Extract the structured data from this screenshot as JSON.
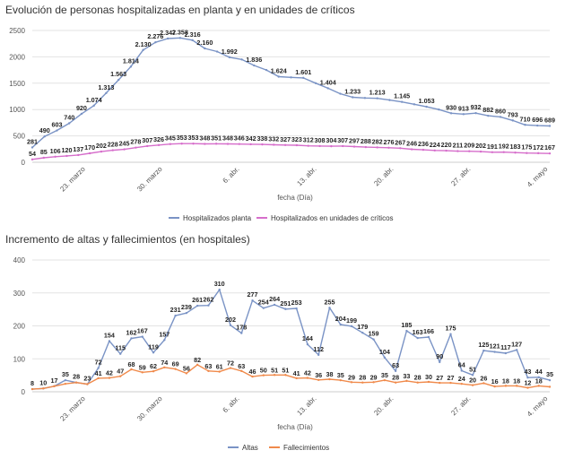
{
  "chart_data": [
    {
      "type": "line",
      "title": "Evolución de personas hospitalizadas en planta y en unidades de críticos",
      "xlabel": "fecha (Día)",
      "ylabel": "",
      "ylim": [
        0,
        2500
      ],
      "yticks": [
        "0",
        "500",
        "1000",
        "1500",
        "2000",
        "2500"
      ],
      "ytick_values": [
        0,
        500,
        1000,
        1500,
        2000,
        2500
      ],
      "xticks": [
        {
          "label": "23. marzo",
          "index": 5
        },
        {
          "label": "30. marzo",
          "index": 12
        },
        {
          "label": "6. abr.",
          "index": 19
        },
        {
          "label": "13. abr.",
          "index": 26
        },
        {
          "label": "20. abr.",
          "index": 33
        },
        {
          "label": "27. abr.",
          "index": 40
        },
        {
          "label": "4. mayo",
          "index": 47
        }
      ],
      "series": [
        {
          "name": "Hospitalizados planta",
          "color": "#7a93c5",
          "values": [
            281,
            490,
            603,
            740,
            920,
            1074,
            1313,
            1563,
            1814,
            2130,
            2276,
            2347,
            2358,
            2316,
            2160,
            2100,
            1992,
            1950,
            1836,
            1750,
            1624,
            1610,
            1601,
            1500,
            1404,
            1300,
            1233,
            1220,
            1213,
            1180,
            1145,
            1100,
            1053,
            1000,
            930,
            913,
            932,
            882,
            860,
            793,
            710,
            696,
            689
          ],
          "labels": [
            "281",
            "490",
            "603",
            "740",
            "920",
            "1.074",
            "1.313",
            "1.563",
            "1.814",
            "2.130",
            "2.276",
            "2.347",
            "2.358",
            "2.316",
            "2.160",
            "",
            "1.992",
            "",
            "1.836",
            "",
            "1.624",
            "",
            "1.601",
            "",
            "1.404",
            "",
            "1.233",
            "",
            "1.213",
            "",
            "1.145",
            "",
            "1.053",
            "",
            "930",
            "913",
            "932",
            "882",
            "860",
            "793",
            "710",
            "696",
            "689"
          ]
        },
        {
          "name": "Hospitalizados en unidades de críticos",
          "color": "#d66ecb",
          "values": [
            54,
            85,
            106,
            120,
            137,
            170,
            202,
            228,
            245,
            278,
            307,
            326,
            345,
            353,
            353,
            348,
            351,
            348,
            346,
            342,
            338,
            332,
            327,
            323,
            312,
            308,
            304,
            307,
            297,
            288,
            282,
            276,
            267,
            246,
            236,
            224,
            220,
            211,
            209,
            202,
            191,
            192,
            183,
            175,
            172,
            167
          ],
          "labels": [
            "54",
            "85",
            "106",
            "120",
            "137",
            "170",
            "202",
            "228",
            "245",
            "278",
            "307",
            "326",
            "345",
            "353",
            "353",
            "348",
            "351",
            "348",
            "346",
            "342",
            "338",
            "332",
            "327",
            "323",
            "312",
            "308",
            "304",
            "307",
            "297",
            "288",
            "282",
            "276",
            "267",
            "246",
            "236",
            "224",
            "220",
            "211",
            "209",
            "202",
            "191",
            "192",
            "183",
            "175",
            "172",
            "167"
          ]
        }
      ],
      "legend": "bottom-center"
    },
    {
      "type": "line",
      "title": "Incremento de altas y fallecimientos (en hospitales)",
      "xlabel": "fecha (Día)",
      "ylabel": "",
      "ylim": [
        0,
        400
      ],
      "yticks": [
        "0",
        "100",
        "200",
        "300",
        "400"
      ],
      "ytick_values": [
        0,
        100,
        200,
        300,
        400
      ],
      "xticks": [
        {
          "label": "23. marzo",
          "index": 5
        },
        {
          "label": "30. marzo",
          "index": 12
        },
        {
          "label": "6. abr.",
          "index": 19
        },
        {
          "label": "13. abr.",
          "index": 26
        },
        {
          "label": "20. abr.",
          "index": 33
        },
        {
          "label": "27. abr.",
          "index": 40
        },
        {
          "label": "4. mayo",
          "index": 47
        }
      ],
      "series": [
        {
          "name": "Altas",
          "color": "#7a93c5",
          "values": [
            8,
            10,
            17,
            35,
            28,
            23,
            72,
            154,
            115,
            162,
            167,
            119,
            157,
            231,
            239,
            261,
            262,
            310,
            202,
            178,
            277,
            254,
            264,
            251,
            253,
            144,
            112,
            255,
            204,
            199,
            179,
            159,
            104,
            63,
            185,
            163,
            166,
            90,
            175,
            64,
            51,
            125,
            121,
            117,
            127,
            43,
            44,
            35
          ],
          "labels": [
            "8",
            "10",
            "17",
            "35",
            "28",
            "23",
            "72",
            "154",
            "115",
            "162",
            "167",
            "119",
            "157",
            "231",
            "239",
            "261",
            "262",
            "310",
            "202",
            "178",
            "277",
            "254",
            "264",
            "251",
            "253",
            "144",
            "112",
            "255",
            "204",
            "199",
            "179",
            "159",
            "104",
            "63",
            "185",
            "163",
            "166",
            "90",
            "175",
            "64",
            "51",
            "125",
            "121",
            "117",
            "127",
            "43",
            "44",
            "35"
          ]
        },
        {
          "name": "Fallecimientos",
          "color": "#f08a4b",
          "values": [
            8,
            10,
            17,
            24,
            28,
            23,
            41,
            42,
            47,
            68,
            59,
            62,
            74,
            69,
            56,
            82,
            63,
            61,
            72,
            63,
            46,
            50,
            51,
            51,
            41,
            42,
            36,
            38,
            35,
            29,
            28,
            29,
            35,
            28,
            33,
            28,
            30,
            27,
            27,
            24,
            20,
            26,
            16,
            18,
            18,
            12,
            18,
            15
          ],
          "labels": [
            "",
            "",
            "",
            "",
            "",
            "",
            "41",
            "42",
            "47",
            "68",
            "59",
            "62",
            "74",
            "69",
            "56",
            "82",
            "63",
            "61",
            "72",
            "63",
            "46",
            "50",
            "51",
            "51",
            "41",
            "42",
            "36",
            "38",
            "35",
            "29",
            "28",
            "29",
            "35",
            "28",
            "33",
            "28",
            "30",
            "27",
            "27",
            "24",
            "20",
            "26",
            "16",
            "18",
            "18",
            "12",
            "18",
            ""
          ]
        }
      ],
      "legend": "bottom-center"
    }
  ]
}
